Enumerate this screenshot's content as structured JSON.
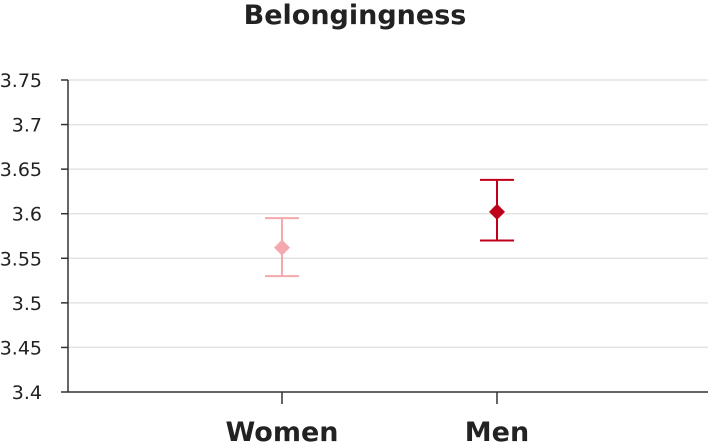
{
  "chart_data": {
    "type": "scatter",
    "title": "Belongingness",
    "xlabel": "",
    "ylabel": "",
    "categories": [
      "Women",
      "Men"
    ],
    "ylim": [
      3.4,
      3.75
    ],
    "yticks": [
      "3.4",
      "3.45",
      "3.5",
      "3.55",
      "3.6",
      "3.65",
      "3.7",
      "3.75"
    ],
    "grid": true,
    "legend": "none",
    "points": [
      {
        "category": "Women",
        "value": 3.562,
        "lower": 3.53,
        "upper": 3.595,
        "color": "#f4a9ad"
      },
      {
        "category": "Men",
        "value": 3.602,
        "lower": 3.57,
        "upper": 3.638,
        "color": "#c0001a"
      }
    ]
  }
}
